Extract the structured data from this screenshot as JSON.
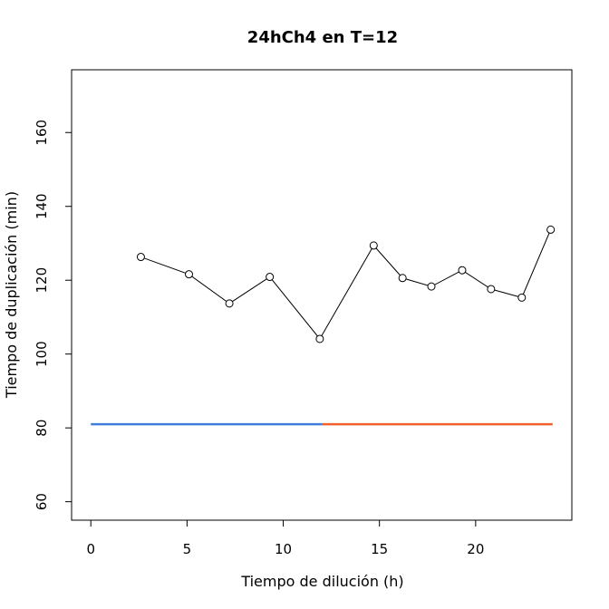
{
  "chart_data": {
    "type": "line",
    "title": "24hCh4 en T=12",
    "xlabel": "Tiempo de dilución (h)",
    "ylabel": "Tiempo de duplicación (min)",
    "xlim": [
      -1,
      25
    ],
    "ylim": [
      55,
      177
    ],
    "xticks": [
      0,
      5,
      10,
      15,
      20
    ],
    "yticks": [
      60,
      80,
      100,
      120,
      140,
      160
    ],
    "grid": false,
    "legend": "none",
    "series": [
      {
        "style": "points-and-line",
        "color": "#000000",
        "x": [
          2.6,
          5.1,
          7.2,
          9.3,
          11.9,
          14.7,
          16.2,
          17.7,
          19.3,
          20.8,
          22.4,
          23.9
        ],
        "y": [
          126.3,
          121.6,
          113.7,
          120.9,
          104.1,
          129.4,
          120.6,
          118.3,
          122.7,
          117.6,
          115.3,
          133.7
        ]
      },
      {
        "style": "segment",
        "color": "#3f7fd9",
        "x": [
          0,
          12
        ],
        "y": [
          81,
          81
        ]
      },
      {
        "style": "segment",
        "color": "#f2602b",
        "x": [
          12,
          24
        ],
        "y": [
          81,
          81
        ]
      }
    ]
  }
}
